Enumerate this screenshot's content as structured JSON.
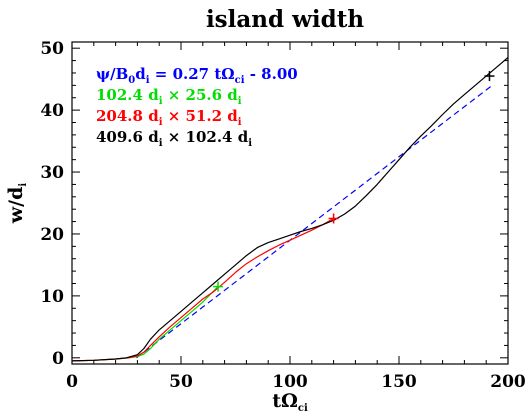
{
  "chart_data": {
    "type": "line",
    "title": "island width",
    "xlabel": "tΩ",
    "xlabel_sub": "ci",
    "ylabel": "w/d",
    "ylabel_sub": "i",
    "xlim": [
      0,
      200
    ],
    "ylim": [
      -1,
      51
    ],
    "xticks": [
      "0",
      "50",
      "100",
      "150",
      "200"
    ],
    "yticks": [
      "0",
      "10",
      "20",
      "30",
      "40",
      "50"
    ],
    "grid": false,
    "legend_position": "top-left",
    "legend": [
      {
        "color": "#0000ff",
        "parts": [
          [
            "ψ/B",
            ""
          ],
          [
            "0",
            "sub"
          ],
          [
            "d",
            ""
          ],
          [
            "i",
            "sub"
          ],
          [
            " = 0.27 tΩ",
            ""
          ],
          [
            "ci",
            "sub"
          ],
          [
            " - 8.00",
            ""
          ]
        ]
      },
      {
        "color": "#00dd00",
        "parts": [
          [
            "102.4 d",
            ""
          ],
          [
            "i",
            "sub"
          ],
          [
            " × 25.6 d",
            ""
          ],
          [
            "i",
            "sub"
          ]
        ]
      },
      {
        "color": "#ff0000",
        "parts": [
          [
            "204.8 d",
            ""
          ],
          [
            "i",
            "sub"
          ],
          [
            " × 51.2 d",
            ""
          ],
          [
            "i",
            "sub"
          ]
        ]
      },
      {
        "color": "#000000",
        "parts": [
          [
            "409.6 d",
            ""
          ],
          [
            "i",
            "sub"
          ],
          [
            " × 102.4 d",
            ""
          ],
          [
            "i",
            "sub"
          ]
        ]
      }
    ],
    "series": [
      {
        "color": "#0000ff",
        "dash": true,
        "x": [
          29.6,
          192
        ],
        "y": [
          0,
          43.8
        ]
      },
      {
        "color": "#00dd00",
        "x": [
          0,
          10,
          20,
          26,
          30,
          33,
          36,
          40,
          45,
          50,
          55,
          60,
          65,
          67
        ],
        "y": [
          -0.5,
          -0.4,
          -0.2,
          0,
          0.2,
          0.6,
          1.5,
          3.0,
          4.5,
          6.0,
          7.5,
          9.0,
          10.8,
          11.5
        ]
      },
      {
        "color": "#ff0000",
        "x": [
          0,
          10,
          20,
          26,
          30,
          33,
          36,
          40,
          45,
          50,
          55,
          60,
          65,
          70,
          75,
          80,
          85,
          90,
          95,
          100,
          105,
          110,
          115,
          120
        ],
        "y": [
          -0.5,
          -0.4,
          -0.2,
          0,
          0.3,
          0.9,
          2.0,
          3.4,
          5.0,
          6.5,
          8.0,
          9.5,
          10.7,
          12.2,
          13.8,
          15.2,
          16.3,
          17.3,
          18.2,
          19.0,
          19.8,
          20.6,
          21.5,
          22.5
        ]
      },
      {
        "color": "#000000",
        "x": [
          0,
          10,
          20,
          25,
          28,
          30,
          33,
          36,
          40,
          45,
          50,
          55,
          60,
          65,
          70,
          75,
          80,
          85,
          90,
          95,
          100,
          105,
          110,
          115,
          120,
          125,
          130,
          135,
          140,
          145,
          150,
          155,
          160,
          165,
          170,
          175,
          180,
          185,
          190,
          195,
          200
        ],
        "y": [
          -0.5,
          -0.4,
          -0.2,
          0,
          0.3,
          0.5,
          1.5,
          3.0,
          4.5,
          6.0,
          7.5,
          9.0,
          10.5,
          12.0,
          13.5,
          15.0,
          16.5,
          17.8,
          18.6,
          19.2,
          19.8,
          20.4,
          20.9,
          21.5,
          22.2,
          23.2,
          24.5,
          26.2,
          28.0,
          30.0,
          32.0,
          34.0,
          35.8,
          37.5,
          39.3,
          41.0,
          42.5,
          44.0,
          45.5,
          47.0,
          48.5
        ]
      }
    ],
    "markers": [
      {
        "color": "#00dd00",
        "x": 67,
        "y": 11.5
      },
      {
        "color": "#ff0000",
        "x": 120,
        "y": 22.5
      },
      {
        "color": "#000000",
        "x": 191.5,
        "y": 45.5
      }
    ]
  }
}
